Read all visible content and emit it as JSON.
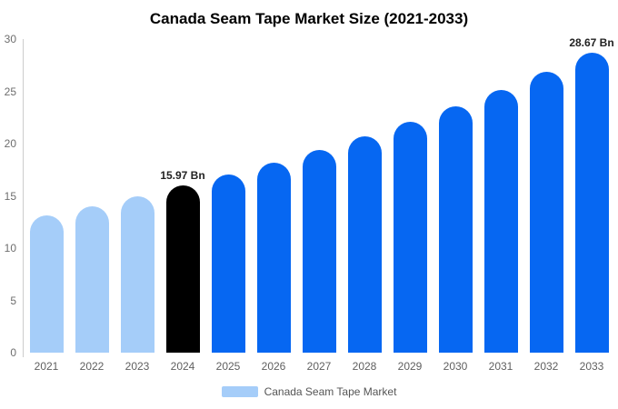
{
  "title": "Canada Seam Tape Market Size (2021-2033)",
  "legend": {
    "label": "Canada Seam Tape Market",
    "swatch_color": "#a5cdf9"
  },
  "colors": {
    "historical_bar": "#a5cdf9",
    "highlight_bar": "#000000",
    "forecast_bar": "#0667f2",
    "axis_line": "#cccccc",
    "tick_text": "#6e6e6e",
    "value_label_text": "#222222"
  },
  "chart_data": {
    "type": "bar",
    "title": "Canada Seam Tape Market Size (2021-2033)",
    "unit": "Bn",
    "categories": [
      "2021",
      "2022",
      "2023",
      "2024",
      "2025",
      "2026",
      "2027",
      "2028",
      "2029",
      "2030",
      "2031",
      "2032",
      "2033"
    ],
    "values": [
      13.14,
      14.02,
      14.96,
      15.97,
      17.04,
      18.19,
      19.41,
      20.71,
      22.1,
      23.59,
      25.17,
      26.87,
      28.67
    ],
    "point_colors": [
      "#a5cdf9",
      "#a5cdf9",
      "#a5cdf9",
      "#000000",
      "#0667f2",
      "#0667f2",
      "#0667f2",
      "#0667f2",
      "#0667f2",
      "#0667f2",
      "#0667f2",
      "#0667f2",
      "#0667f2"
    ],
    "annotations": [
      {
        "category": "2024",
        "text": "15.97 Bn"
      },
      {
        "category": "2033",
        "text": "28.67 Bn"
      }
    ],
    "xlabel": "",
    "ylabel": "",
    "ylim": [
      0,
      30
    ],
    "yticks": [
      0,
      5,
      10,
      15,
      20,
      25,
      30
    ],
    "grid": false,
    "legend_position": "bottom",
    "legend_entries": [
      "Canada Seam Tape Market"
    ]
  }
}
